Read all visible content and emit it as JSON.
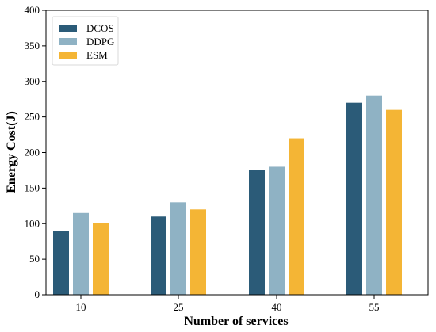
{
  "chart_data": {
    "type": "bar",
    "title": "",
    "xlabel": "Number of services",
    "ylabel": "Energy Cost(J)",
    "categories": [
      "10",
      "25",
      "40",
      "55"
    ],
    "ylim": [
      0,
      400
    ],
    "yticks": [
      0,
      50,
      100,
      150,
      200,
      250,
      300,
      350,
      400
    ],
    "grid": false,
    "legend_position": "top-left",
    "series": [
      {
        "name": "DCOS",
        "color": "#2b5b78",
        "values": [
          90,
          110,
          175,
          270
        ]
      },
      {
        "name": "DDPG",
        "color": "#8fb2c4",
        "values": [
          115,
          130,
          180,
          280
        ]
      },
      {
        "name": "ESM",
        "color": "#f4b535",
        "values": [
          101,
          120,
          220,
          260
        ]
      }
    ]
  }
}
